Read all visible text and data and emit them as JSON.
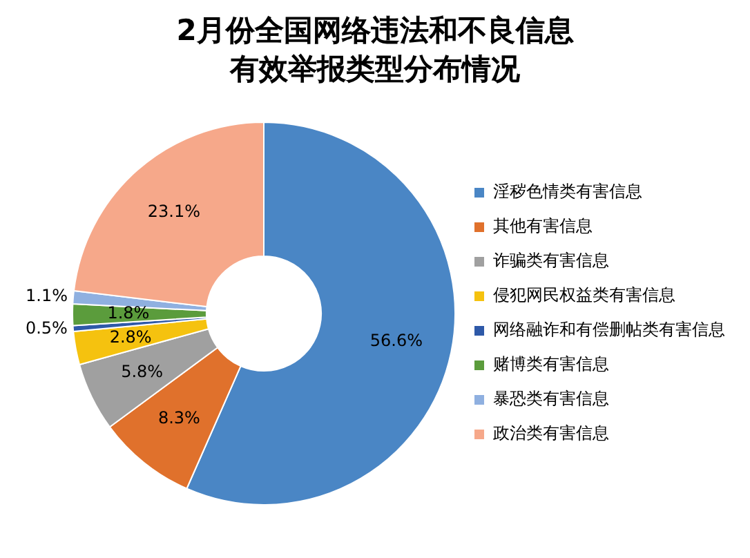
{
  "chart_data": {
    "type": "donut",
    "title": "2月份全国网络违法和不良信息有效举报类型分布情况",
    "categories": [
      "淫秽色情类有害信息",
      "其他有害信息",
      "诈骗类有害信息",
      "侵犯网民权益类有害信息",
      "网络融诈和有偿删帖类有害信息",
      "赌博类有害信息",
      "暴恐类有害信息",
      "政治类有害信息"
    ],
    "values": [
      56.6,
      8.3,
      5.8,
      2.8,
      0.5,
      1.8,
      1.1,
      23.1
    ],
    "value_labels": [
      "56.6%",
      "8.3%",
      "5.8%",
      "2.8%",
      "0.5%",
      "1.8%",
      "1.1%",
      "23.1%"
    ],
    "colors": [
      "#4a86c5",
      "#e0712c",
      "#a0a0a0",
      "#f5c20f",
      "#2e59a8",
      "#5b9c3c",
      "#8fb0e0",
      "#f6a88a"
    ],
    "legend": "right"
  }
}
